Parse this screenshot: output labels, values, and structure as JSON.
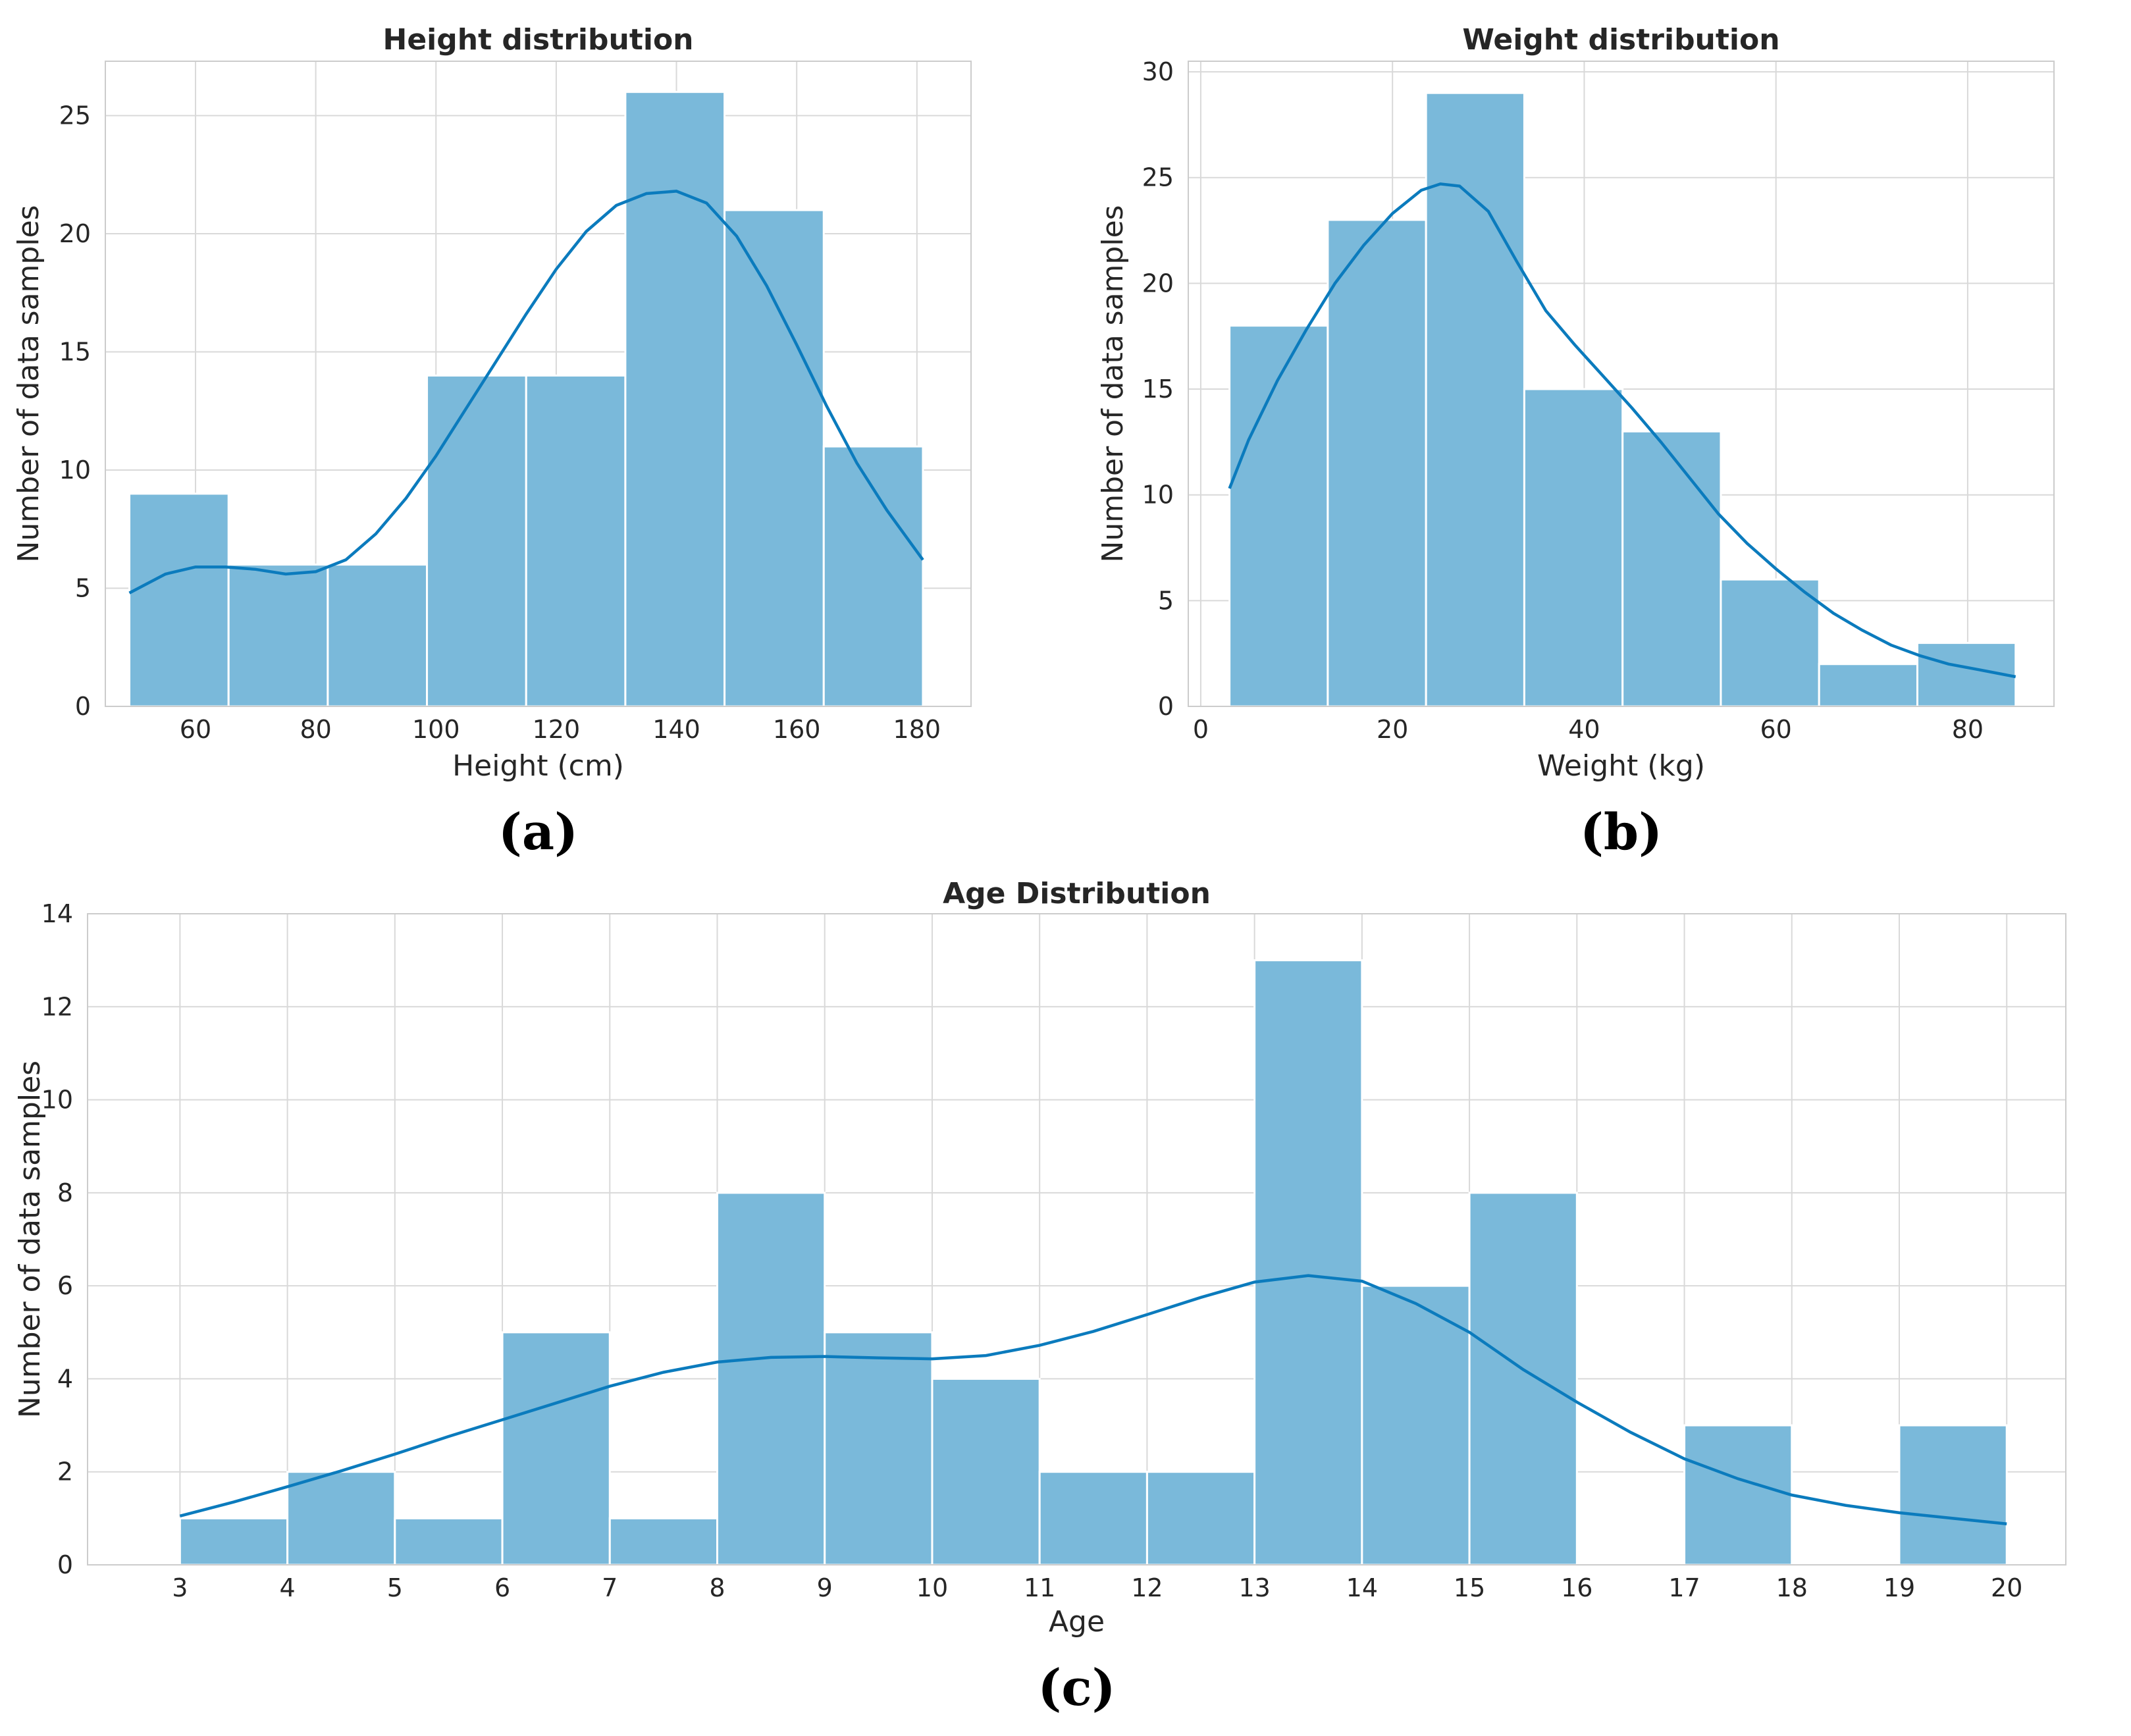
{
  "colors": {
    "bar": "#7ab9da",
    "kde": "#0b7bbd",
    "grid": "#d9d9d9",
    "frame": "#cccccc"
  },
  "chart_data": [
    {
      "type": "histogram",
      "panel_label": "(a)",
      "title": "Height distribution",
      "xlabel": "Height (cm)",
      "ylabel": "Number of data samples",
      "xlim": [
        45,
        189
      ],
      "ylim": [
        0,
        27.3
      ],
      "xticks": [
        60,
        80,
        100,
        120,
        140,
        160,
        180
      ],
      "yticks": [
        0,
        5,
        10,
        15,
        20,
        25
      ],
      "bin_edges": [
        49,
        65.5,
        82,
        98.5,
        115,
        131.5,
        148,
        164.5,
        181
      ],
      "counts": [
        9,
        6,
        6,
        14,
        14,
        26,
        21,
        11
      ],
      "kde": {
        "x": [
          49,
          55,
          60,
          65,
          70,
          75,
          80,
          85,
          90,
          95,
          100,
          105,
          110,
          115,
          120,
          125,
          130,
          135,
          140,
          145,
          150,
          155,
          160,
          165,
          170,
          175,
          181
        ],
        "y": [
          4.8,
          5.6,
          5.9,
          5.9,
          5.8,
          5.6,
          5.7,
          6.2,
          7.3,
          8.8,
          10.6,
          12.6,
          14.6,
          16.6,
          18.5,
          20.1,
          21.2,
          21.7,
          21.8,
          21.3,
          19.9,
          17.8,
          15.3,
          12.7,
          10.3,
          8.3,
          6.2
        ]
      }
    },
    {
      "type": "histogram",
      "panel_label": "(b)",
      "title": "Weight distribution",
      "xlabel": "Weight (kg)",
      "ylabel": "Number of data samples",
      "xlimit_note": "",
      "xlim": [
        -1.3,
        89
      ],
      "ylim": [
        0,
        30.5
      ],
      "xticks": [
        0,
        20,
        40,
        60,
        80
      ],
      "yticks": [
        0,
        5,
        10,
        15,
        20,
        25,
        30
      ],
      "bin_edges": [
        3,
        13.25,
        23.5,
        33.75,
        44,
        54.25,
        64.5,
        74.75,
        85
      ],
      "counts": [
        18,
        23,
        29,
        15,
        13,
        6,
        2,
        3
      ],
      "kde": {
        "x": [
          3,
          5,
          8,
          11,
          14,
          17,
          20,
          23,
          25,
          27,
          30,
          33,
          36,
          39,
          42,
          45,
          48,
          51,
          54,
          57,
          60,
          63,
          66,
          69,
          72,
          75,
          78,
          81,
          85
        ],
        "y": [
          10.3,
          12.6,
          15.4,
          17.8,
          20,
          21.8,
          23.3,
          24.4,
          24.7,
          24.6,
          23.4,
          21,
          18.7,
          17.1,
          15.6,
          14.1,
          12.5,
          10.8,
          9.1,
          7.7,
          6.5,
          5.4,
          4.4,
          3.6,
          2.9,
          2.4,
          2,
          1.75,
          1.4
        ]
      }
    },
    {
      "type": "histogram",
      "panel_label": "(c)",
      "title": "Age Distribution",
      "xlabel": "Age",
      "ylabel": "Number of data samples",
      "xlim": [
        2.14,
        20.55
      ],
      "ylim": [
        0,
        14
      ],
      "xticks": [
        3,
        4,
        5,
        6,
        7,
        8,
        9,
        10,
        11,
        12,
        13,
        14,
        15,
        16,
        17,
        18,
        19,
        20
      ],
      "yticks": [
        0,
        2,
        4,
        6,
        8,
        10,
        12,
        14
      ],
      "bin_edges": [
        3,
        4,
        5,
        6,
        7,
        8,
        9,
        10,
        11,
        12,
        13,
        14,
        15,
        16,
        17,
        18,
        19,
        20
      ],
      "counts": [
        1,
        2,
        1,
        5,
        1,
        8,
        5,
        4,
        2,
        2,
        13,
        6,
        8,
        0,
        3,
        0,
        3
      ],
      "kde": {
        "x": [
          3,
          3.5,
          4,
          4.5,
          5,
          5.5,
          6,
          6.5,
          7,
          7.5,
          8,
          8.5,
          9,
          9.5,
          10,
          10.5,
          11,
          11.5,
          12,
          12.5,
          13,
          13.5,
          14,
          14.5,
          15,
          15.5,
          16,
          16.5,
          17,
          17.5,
          18,
          18.5,
          19,
          19.5,
          20
        ],
        "y": [
          1.05,
          1.35,
          1.68,
          2.02,
          2.38,
          2.76,
          3.12,
          3.48,
          3.84,
          4.14,
          4.36,
          4.46,
          4.48,
          4.45,
          4.43,
          4.5,
          4.72,
          5.02,
          5.38,
          5.75,
          6.08,
          6.22,
          6.1,
          5.62,
          5.0,
          4.2,
          3.5,
          2.85,
          2.28,
          1.85,
          1.5,
          1.28,
          1.12,
          1.0,
          0.88
        ]
      }
    }
  ]
}
